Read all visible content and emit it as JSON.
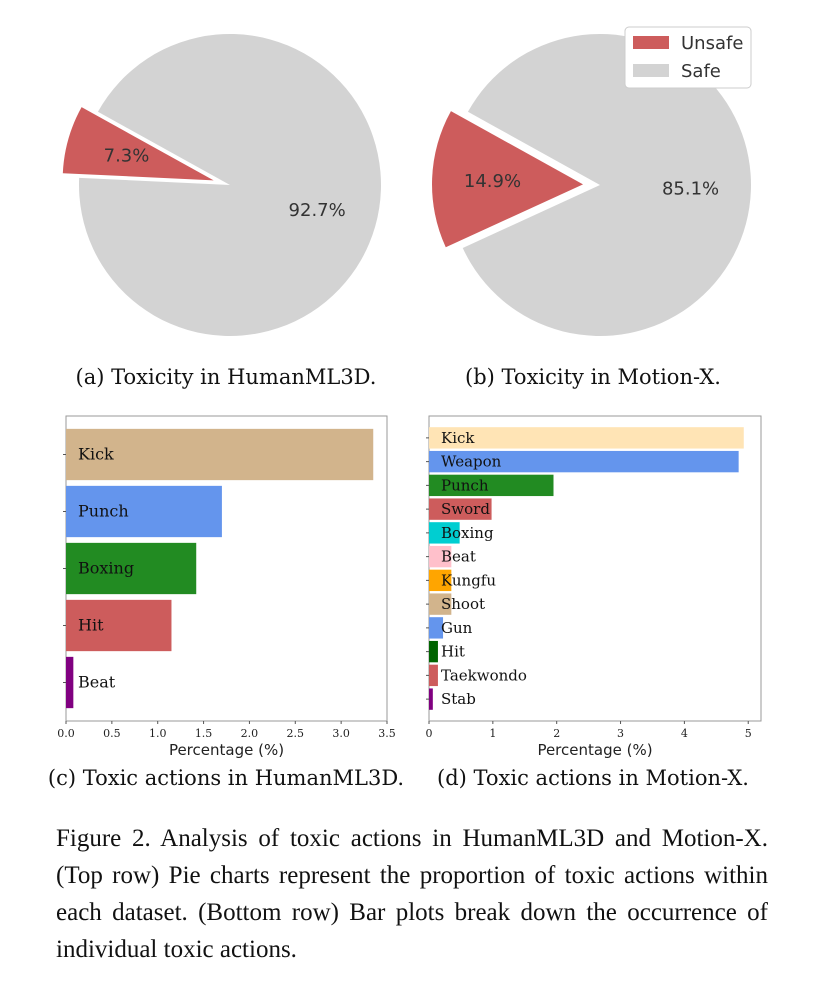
{
  "chart_data": [
    {
      "type": "pie",
      "subcaption": "(a) Toxicity in HumanML3D.",
      "slices": [
        {
          "label": "Unsafe",
          "value": 7.3,
          "display": "7.3%",
          "color": "#cd5c5c",
          "exploded": true
        },
        {
          "label": "Safe",
          "value": 92.7,
          "display": "92.7%",
          "color": "#d3d3d3",
          "exploded": false
        }
      ]
    },
    {
      "type": "pie",
      "subcaption": "(b) Toxicity in Motion-X.",
      "legend": {
        "placement": "top-right",
        "entries": [
          "Unsafe",
          "Safe"
        ]
      },
      "slices": [
        {
          "label": "Unsafe",
          "value": 14.9,
          "display": "14.9%",
          "color": "#cd5c5c",
          "exploded": true
        },
        {
          "label": "Safe",
          "value": 85.1,
          "display": "85.1%",
          "color": "#d3d3d3",
          "exploded": false
        }
      ]
    },
    {
      "type": "bar",
      "orientation": "horizontal",
      "subcaption": "(c) Toxic actions in HumanML3D.",
      "xlabel": "Percentage (%)",
      "xlim": [
        0,
        3.5
      ],
      "xticks": [
        "0.0",
        "0.5",
        "1.0",
        "1.5",
        "2.0",
        "2.5",
        "3.0",
        "3.5"
      ],
      "grid": false,
      "categories": [
        "Kick",
        "Punch",
        "Boxing",
        "Hit",
        "Beat"
      ],
      "values": [
        3.35,
        1.7,
        1.42,
        1.15,
        0.08
      ],
      "colors": [
        "#d2b48c",
        "#6495ed",
        "#228b22",
        "#cd5c5c",
        "#800080"
      ]
    },
    {
      "type": "bar",
      "orientation": "horizontal",
      "subcaption": "(d) Toxic actions in Motion-X.",
      "xlabel": "Percentage (%)",
      "xlim": [
        0,
        5.2
      ],
      "xticks": [
        "0",
        "1",
        "2",
        "3",
        "4",
        "5"
      ],
      "grid": false,
      "categories": [
        "Kick",
        "Weapon",
        "Punch",
        "Sword",
        "Boxing",
        "Beat",
        "Kungfu",
        "Shoot",
        "Gun",
        "Hit",
        "Taekwondo",
        "Stab"
      ],
      "values": [
        4.93,
        4.85,
        1.95,
        0.98,
        0.48,
        0.35,
        0.35,
        0.35,
        0.22,
        0.14,
        0.14,
        0.06
      ],
      "colors": [
        "#ffe4b5",
        "#6495ed",
        "#228b22",
        "#cd5c5c",
        "#00ced1",
        "#ffc0cb",
        "#ffa500",
        "#d2b48c",
        "#6495ed",
        "#006400",
        "#cd5c5c",
        "#800080"
      ]
    }
  ],
  "caption": "Figure 2. Analysis of toxic actions in HumanML3D and Motion-X. (Top row) Pie charts represent the proportion of toxic actions within each dataset. (Bottom row) Bar plots break down the occurrence of individual toxic actions."
}
